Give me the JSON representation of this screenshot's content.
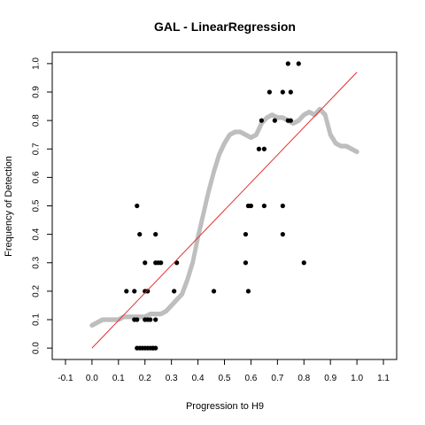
{
  "chart_data": {
    "type": "scatter",
    "title": "GAL - LinearRegression",
    "xlabel": "Progression to H9",
    "ylabel": "Frequency of Detection",
    "xlim": [
      -0.15,
      1.15
    ],
    "ylim": [
      -0.04,
      1.04
    ],
    "xticks": [
      "-0.1",
      "0.0",
      "0.1",
      "0.2",
      "0.3",
      "0.4",
      "0.5",
      "0.6",
      "0.7",
      "0.8",
      "0.9",
      "1.0",
      "1.1"
    ],
    "yticks": [
      "0.0",
      "0.1",
      "0.2",
      "0.3",
      "0.4",
      "0.5",
      "0.6",
      "0.7",
      "0.8",
      "0.9",
      "1.0"
    ],
    "grid": false,
    "series": [
      {
        "kind": "smooth-curve",
        "color": "#bebebe",
        "x": [
          0.0,
          0.02,
          0.04,
          0.06,
          0.08,
          0.1,
          0.12,
          0.14,
          0.16,
          0.18,
          0.2,
          0.22,
          0.24,
          0.26,
          0.28,
          0.3,
          0.32,
          0.34,
          0.36,
          0.38,
          0.4,
          0.42,
          0.44,
          0.46,
          0.48,
          0.5,
          0.52,
          0.54,
          0.56,
          0.58,
          0.6,
          0.62,
          0.64,
          0.66,
          0.68,
          0.7,
          0.72,
          0.74,
          0.76,
          0.78,
          0.8,
          0.82,
          0.84,
          0.86,
          0.88,
          0.9,
          0.92,
          0.94,
          0.96,
          0.98,
          1.0
        ],
        "y": [
          0.08,
          0.09,
          0.1,
          0.1,
          0.1,
          0.1,
          0.11,
          0.11,
          0.11,
          0.11,
          0.11,
          0.12,
          0.12,
          0.12,
          0.13,
          0.15,
          0.17,
          0.19,
          0.24,
          0.3,
          0.39,
          0.47,
          0.55,
          0.62,
          0.68,
          0.72,
          0.75,
          0.76,
          0.76,
          0.75,
          0.74,
          0.75,
          0.79,
          0.81,
          0.82,
          0.81,
          0.81,
          0.8,
          0.79,
          0.8,
          0.82,
          0.83,
          0.82,
          0.84,
          0.82,
          0.75,
          0.72,
          0.71,
          0.71,
          0.7,
          0.69
        ]
      },
      {
        "kind": "points",
        "color": "#000000",
        "x": [
          0.17,
          0.18,
          0.19,
          0.2,
          0.21,
          0.22,
          0.23,
          0.21,
          0.22,
          0.24,
          0.13,
          0.16,
          0.2,
          0.21,
          0.31,
          0.46,
          0.59,
          0.2,
          0.24,
          0.25,
          0.26,
          0.32,
          0.58,
          0.18,
          0.24,
          0.58,
          0.72,
          0.17,
          0.59,
          0.6,
          0.65,
          0.72,
          0.63,
          0.65,
          0.64,
          0.69,
          0.74,
          0.75,
          0.67,
          0.72,
          0.75,
          0.74,
          0.78,
          0.8,
          0.16,
          0.17,
          0.2,
          0.23,
          0.24
        ],
        "y": [
          0.0,
          0.0,
          0.0,
          0.0,
          0.0,
          0.0,
          0.0,
          0.1,
          0.1,
          0.1,
          0.2,
          0.2,
          0.2,
          0.2,
          0.2,
          0.2,
          0.2,
          0.3,
          0.3,
          0.3,
          0.3,
          0.3,
          0.3,
          0.4,
          0.4,
          0.4,
          0.4,
          0.5,
          0.5,
          0.5,
          0.5,
          0.5,
          0.7,
          0.7,
          0.8,
          0.8,
          0.8,
          0.8,
          0.9,
          0.9,
          0.9,
          1.0,
          1.0,
          0.3,
          0.1,
          0.1,
          0.1,
          0.0,
          0.0
        ]
      },
      {
        "kind": "line",
        "color": "#e03030",
        "x": [
          0.0,
          1.0
        ],
        "y": [
          0.0,
          0.97
        ]
      }
    ]
  }
}
